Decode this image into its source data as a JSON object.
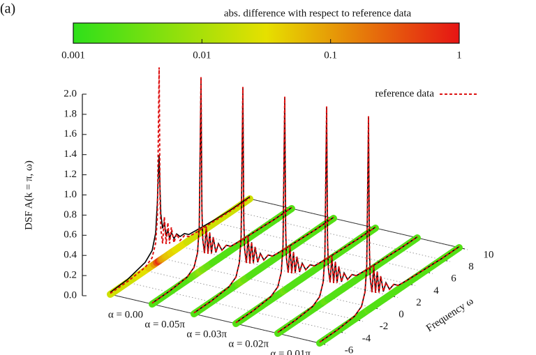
{
  "chart_data": {
    "type": "waterfall3d",
    "panel_label": "(a)",
    "colorbar": {
      "title": "abs. difference with respect to reference data",
      "lim": [
        0.001,
        1
      ],
      "ticks": [
        0.001,
        0.01,
        0.1,
        1
      ],
      "log": true,
      "colormap": [
        "#2ee01a",
        "#e6e000",
        "#e61414"
      ]
    },
    "y_label": "DSF A(k = π, ω)",
    "ylim": [
      0,
      2
    ],
    "yticks": [
      {
        "value": 0,
        "label": "0.0"
      },
      0.2,
      0.4,
      0.6,
      0.8,
      {
        "value": 1,
        "label": "1.0"
      },
      1.2,
      1.4,
      1.6,
      1.8,
      {
        "value": 2,
        "label": "2.0"
      }
    ],
    "x_label": "Frequency ω",
    "xlim": [
      -6,
      10
    ],
    "xticks": [
      -6,
      -4,
      -2,
      0,
      2,
      4,
      6,
      8,
      10
    ],
    "x": [
      -6,
      -4,
      -2,
      -1.2,
      -0.8,
      -0.6,
      -0.4,
      -0.3,
      -0.2,
      0,
      0.2,
      0.4,
      0.6,
      0.8,
      1,
      1.3,
      1.6,
      2,
      2.5,
      3,
      4,
      6,
      8,
      10
    ],
    "reference": {
      "name": "reference data",
      "color": "#dd1111",
      "values": [
        0.01,
        0.01,
        0.03,
        0.08,
        0.2,
        0.45,
        1.92,
        0.6,
        0.3,
        0.15,
        0.4,
        0.12,
        0.32,
        0.1,
        0.25,
        0.08,
        0.15,
        0.06,
        0.08,
        0.04,
        0.03,
        0.02,
        0.01,
        0.01
      ]
    },
    "curve_color": "#000000",
    "series": [
      {
        "name": "α = 0.00",
        "values": [
          0.02,
          0.03,
          0.08,
          0.15,
          0.3,
          0.6,
          1.05,
          0.7,
          0.45,
          0.3,
          0.35,
          0.2,
          0.25,
          0.15,
          0.2,
          0.12,
          0.15,
          0.1,
          0.1,
          0.06,
          0.05,
          0.03,
          0.02,
          0.02
        ],
        "errors": [
          0.02,
          0.02,
          0.03,
          0.05,
          0.1,
          0.3,
          0.6,
          0.4,
          0.2,
          0.1,
          0.08,
          0.06,
          0.05,
          0.05,
          0.04,
          0.04,
          0.03,
          0.03,
          0.03,
          0.02,
          0.02,
          0.02,
          0.02,
          0.02
        ]
      },
      {
        "name": "α = 0.05π",
        "values": [
          0.01,
          0.01,
          0.03,
          0.08,
          0.2,
          0.45,
          1.9,
          0.6,
          0.3,
          0.15,
          0.4,
          0.12,
          0.32,
          0.1,
          0.25,
          0.08,
          0.15,
          0.06,
          0.08,
          0.04,
          0.03,
          0.02,
          0.01,
          0.01
        ],
        "errors": [
          0.002,
          0.002,
          0.002,
          0.003,
          0.004,
          0.006,
          0.008,
          0.006,
          0.005,
          0.004,
          0.004,
          0.003,
          0.003,
          0.003,
          0.002,
          0.002,
          0.002,
          0.002,
          0.002,
          0.002,
          0.002,
          0.002,
          0.002,
          0.002
        ]
      },
      {
        "name": "α = 0.03π",
        "values": [
          0.01,
          0.01,
          0.03,
          0.08,
          0.2,
          0.45,
          1.91,
          0.6,
          0.3,
          0.15,
          0.4,
          0.12,
          0.32,
          0.1,
          0.25,
          0.08,
          0.15,
          0.06,
          0.08,
          0.04,
          0.03,
          0.02,
          0.01,
          0.01
        ],
        "errors": [
          0.002,
          0.002,
          0.002,
          0.002,
          0.003,
          0.004,
          0.005,
          0.004,
          0.003,
          0.003,
          0.003,
          0.002,
          0.002,
          0.002,
          0.002,
          0.002,
          0.002,
          0.002,
          0.002,
          0.002,
          0.002,
          0.002,
          0.002,
          0.002
        ]
      },
      {
        "name": "α = 0.02π",
        "values": [
          0.01,
          0.01,
          0.03,
          0.08,
          0.2,
          0.45,
          1.91,
          0.6,
          0.3,
          0.15,
          0.4,
          0.12,
          0.32,
          0.1,
          0.25,
          0.08,
          0.15,
          0.06,
          0.08,
          0.04,
          0.03,
          0.02,
          0.01,
          0.01
        ],
        "errors": [
          0.002,
          0.002,
          0.002,
          0.002,
          0.002,
          0.003,
          0.004,
          0.003,
          0.003,
          0.002,
          0.002,
          0.002,
          0.002,
          0.002,
          0.002,
          0.002,
          0.002,
          0.002,
          0.002,
          0.002,
          0.002,
          0.002,
          0.002,
          0.002
        ]
      },
      {
        "name": "α = 0.01π",
        "values": [
          0.01,
          0.01,
          0.03,
          0.08,
          0.2,
          0.45,
          1.9,
          0.6,
          0.3,
          0.15,
          0.4,
          0.12,
          0.32,
          0.1,
          0.25,
          0.08,
          0.15,
          0.06,
          0.08,
          0.04,
          0.03,
          0.02,
          0.01,
          0.01
        ],
        "errors": [
          0.002,
          0.002,
          0.002,
          0.002,
          0.002,
          0.003,
          0.003,
          0.003,
          0.002,
          0.002,
          0.002,
          0.002,
          0.002,
          0.002,
          0.002,
          0.002,
          0.002,
          0.002,
          0.002,
          0.002,
          0.002,
          0.002,
          0.002,
          0.002
        ]
      },
      {
        "name": null,
        "values": [
          0.01,
          0.01,
          0.03,
          0.08,
          0.2,
          0.45,
          1.9,
          0.6,
          0.3,
          0.15,
          0.4,
          0.12,
          0.32,
          0.1,
          0.25,
          0.08,
          0.15,
          0.06,
          0.08,
          0.04,
          0.03,
          0.02,
          0.01,
          0.01
        ],
        "errors": [
          0.002,
          0.002,
          0.002,
          0.002,
          0.002,
          0.002,
          0.003,
          0.002,
          0.002,
          0.002,
          0.002,
          0.002,
          0.002,
          0.002,
          0.002,
          0.002,
          0.002,
          0.002,
          0.002,
          0.002,
          0.002,
          0.002,
          0.002,
          0.002
        ]
      }
    ]
  }
}
